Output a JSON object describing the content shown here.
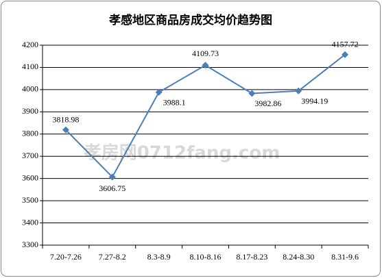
{
  "chart_data": {
    "type": "line",
    "title": "孝感地区商品房成交均价趋势图",
    "categories": [
      "7.20-7.26",
      "7.27-8.2",
      "8.3-8.9",
      "8.10-8.16",
      "8.17-8.23",
      "8.24-8.30",
      "8.31-9.6"
    ],
    "series": [
      {
        "color": "#4a7ebb",
        "values": [
          3818.98,
          3606.75,
          3988.1,
          4109.73,
          3982.86,
          3994.19,
          4157.72
        ]
      }
    ],
    "ylim": [
      3300,
      4200
    ],
    "yticks": [
      3300,
      3400,
      3500,
      3600,
      3700,
      3800,
      3900,
      4000,
      4100,
      4200
    ],
    "grid": true,
    "watermark": "孝房网0712fang.com"
  }
}
